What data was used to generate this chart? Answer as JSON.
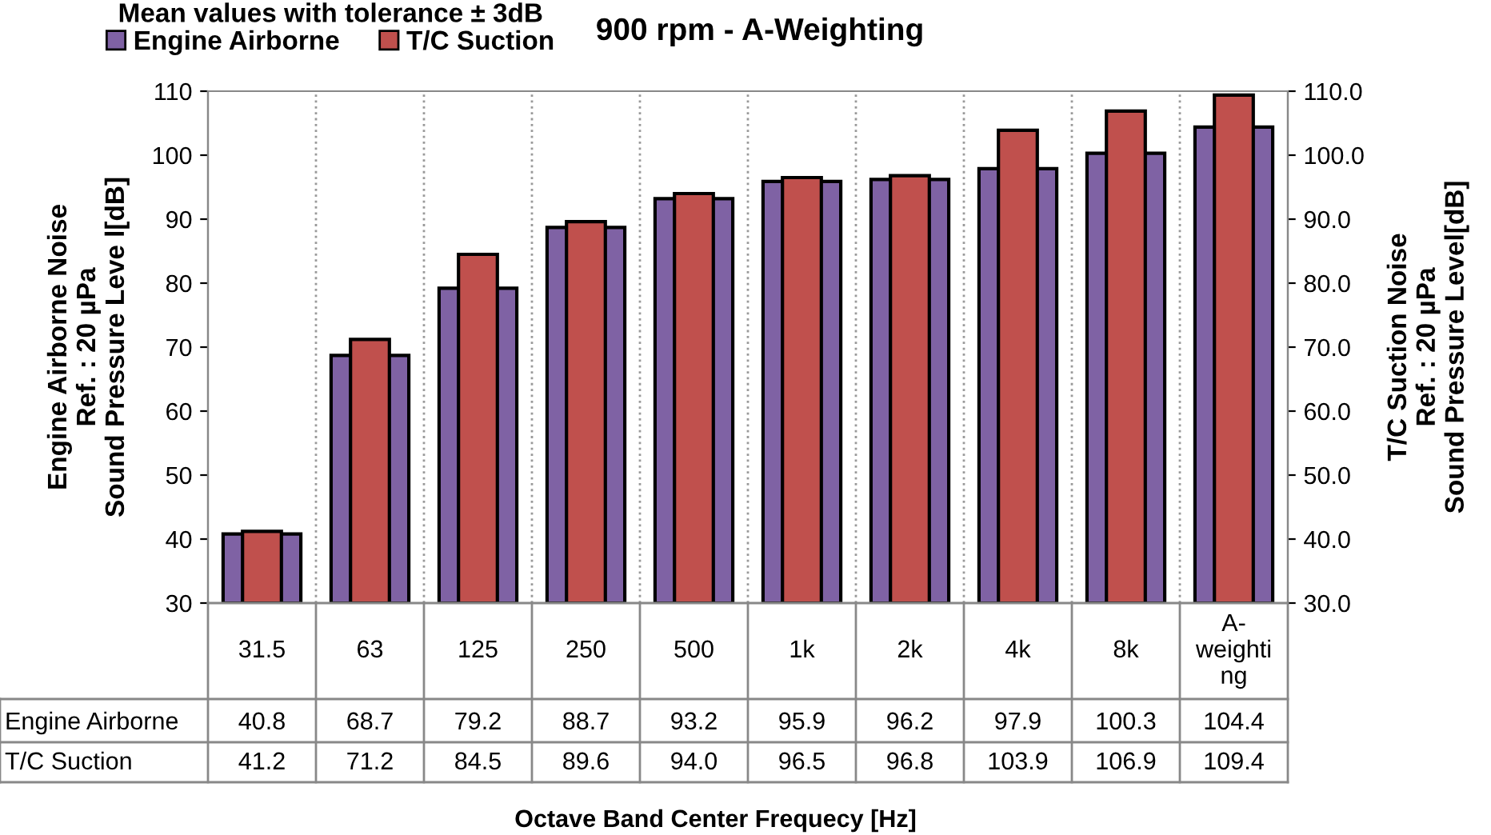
{
  "chart_data": {
    "type": "bar",
    "title": "900 rpm - A-Weighting",
    "legend_title": "Mean values with tolerance ± 3dB",
    "xlabel": "Octave Band Center Frequecy [Hz]",
    "ylabel": "Engine Airborne Noise\nRef. : 20 µPa\nSound Pressure Leve l[dB]",
    "y2label": "T/C Suction Noise\nRef. : 20 µPa\nSound Pressure Level[dB]",
    "categories": [
      "31.5",
      "63",
      "125",
      "250",
      "500",
      "1k",
      "2k",
      "4k",
      "8k",
      "A-\nweighti\nng"
    ],
    "series": [
      {
        "name": "Engine Airborne",
        "color": "#7f62a4",
        "values": [
          40.8,
          68.7,
          79.2,
          88.7,
          93.2,
          95.9,
          96.2,
          97.9,
          100.3,
          104.4
        ],
        "value_labels": [
          "40.8",
          "68.7",
          "79.2",
          "88.7",
          "93.2",
          "95.9",
          "96.2",
          "97.9",
          "100.3",
          "104.4"
        ]
      },
      {
        "name": "T/C Suction",
        "color": "#c0504d",
        "axis": "y2",
        "values": [
          41.2,
          71.2,
          84.5,
          89.6,
          94.0,
          96.5,
          96.8,
          103.9,
          106.9,
          109.4
        ],
        "value_labels": [
          "41.2",
          "71.2",
          "84.5",
          "89.6",
          "94.0",
          "96.5",
          "96.8",
          "103.9",
          "106.9",
          "109.4"
        ]
      }
    ],
    "ylim": [
      30,
      110
    ],
    "yticks": [
      30,
      40,
      50,
      60,
      70,
      80,
      90,
      100,
      110
    ],
    "y2lim": [
      30,
      110
    ],
    "y2ticks": [
      {
        "value": 30,
        "label": "30.0"
      },
      {
        "value": 40,
        "label": "40.0"
      },
      {
        "value": 50,
        "label": "50.0"
      },
      {
        "value": 60,
        "label": "60.0"
      },
      {
        "value": 70,
        "label": "70.0"
      },
      {
        "value": 80,
        "label": "80.0"
      },
      {
        "value": 90,
        "label": "90.0"
      },
      {
        "value": 100,
        "label": "100.0"
      },
      {
        "value": 110,
        "label": "110.0"
      }
    ],
    "grid": "x",
    "legend": "top left"
  }
}
